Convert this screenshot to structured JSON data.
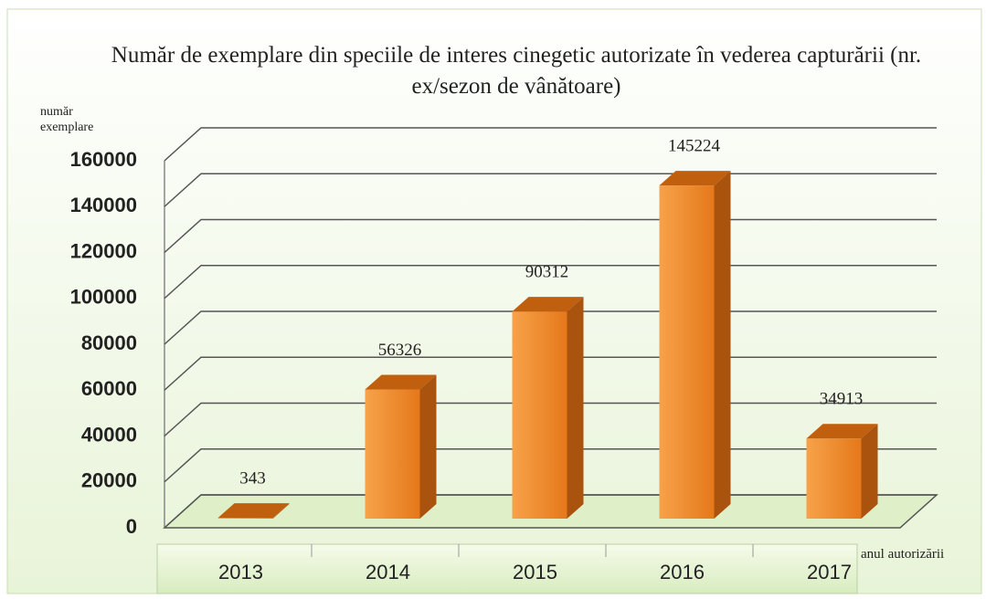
{
  "chart_data": {
    "type": "bar3d",
    "title": "Număr de exemplare din speciile de interes cinegetic autorizate în vederea capturării (nr. ex/sezon de vânătoare)",
    "y_label": "număr exemplare",
    "x_label": "anul autorizării",
    "categories": [
      "2013",
      "2014",
      "2015",
      "2016",
      "2017"
    ],
    "values": [
      343,
      56326,
      90312,
      145224,
      34913
    ],
    "color": "#f0821e",
    "ylim": [
      0,
      160000
    ],
    "yticks": [
      0,
      20000,
      40000,
      60000,
      80000,
      100000,
      120000,
      140000,
      160000
    ],
    "grid": true
  }
}
